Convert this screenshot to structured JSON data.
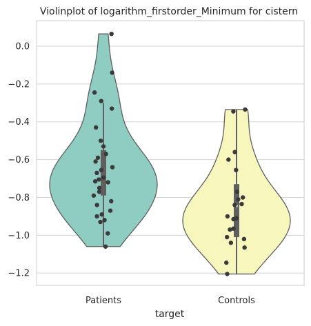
{
  "chart_data": {
    "type": "violin",
    "title": "Violinplot of logarithm_firstorder_Minimum for cistern",
    "xlabel": "target",
    "ylabel": "",
    "categories": [
      "Patients",
      "Controls"
    ],
    "ylim": [
      -1.265,
      0.135
    ],
    "yticks": [
      0.0,
      -0.2,
      -0.4,
      -0.6,
      -0.8,
      -1.0,
      -1.2
    ],
    "ytick_labels": [
      "0.0",
      "−0.2",
      "−0.4",
      "−0.6",
      "−0.8",
      "−1.0",
      "−1.2"
    ],
    "grid": true,
    "series": [
      {
        "category": "Patients",
        "color": "#8fccc2",
        "min": -1.06,
        "max": 0.065,
        "q1": -0.79,
        "median": -0.695,
        "q3": -0.55,
        "whisker_low": -1.06,
        "whisker_high": -0.3,
        "points": [
          0.065,
          -0.14,
          -0.245,
          -0.29,
          -0.33,
          -0.43,
          -0.5,
          -0.53,
          -0.57,
          -0.59,
          -0.61,
          -0.64,
          -0.655,
          -0.67,
          -0.695,
          -0.705,
          -0.715,
          -0.72,
          -0.75,
          -0.77,
          -0.79,
          -0.82,
          -0.84,
          -0.87,
          -0.89,
          -0.9,
          -0.92,
          -0.93,
          -0.99,
          -1.06
        ]
      },
      {
        "category": "Controls",
        "color": "#f6f6bd",
        "min": -1.205,
        "max": -0.335,
        "q1": -1.01,
        "median": -0.845,
        "q3": -0.73,
        "whisker_low": -1.205,
        "whisker_high": -0.335,
        "points": [
          -0.335,
          -0.345,
          -0.56,
          -0.6,
          -0.655,
          -0.77,
          -0.8,
          -0.81,
          -0.835,
          -0.84,
          -0.9,
          -0.91,
          -0.915,
          -0.965,
          -0.97,
          -1.01,
          -1.02,
          -1.04,
          -1.065,
          -1.145,
          -1.205
        ]
      }
    ]
  }
}
